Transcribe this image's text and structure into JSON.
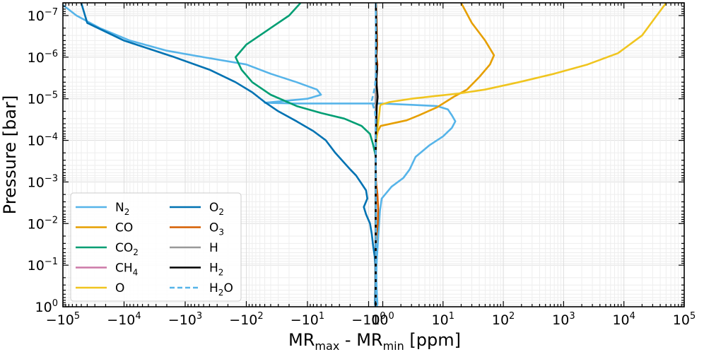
{
  "chart_data": {
    "type": "line",
    "xlabel": {
      "main": "MR",
      "sub1": "max",
      "mid": " - MR",
      "sub2": "min",
      "tail": " [ppm]"
    },
    "ylabel": "Pressure [bar]",
    "x_scale": "symlog",
    "y_scale": "log",
    "y_inverted": true,
    "xlim": [
      -100000,
      100000
    ],
    "ylim": [
      1,
      5e-08
    ],
    "x_ticks": [
      {
        "value": -100000,
        "base": "−10",
        "exp": "5"
      },
      {
        "value": -10000,
        "base": "−10",
        "exp": "4"
      },
      {
        "value": -1000,
        "base": "−10",
        "exp": "3"
      },
      {
        "value": -100,
        "base": "−10",
        "exp": "2"
      },
      {
        "value": -10,
        "base": "−10",
        "exp": "1"
      },
      {
        "value": -1,
        "base": "−10",
        "exp": "0"
      },
      {
        "value": 0,
        "base": "0",
        "exp": ""
      },
      {
        "value": 1,
        "base": "10",
        "exp": "0"
      },
      {
        "value": 10,
        "base": "10",
        "exp": "1"
      },
      {
        "value": 100,
        "base": "10",
        "exp": "2"
      },
      {
        "value": 1000,
        "base": "10",
        "exp": "3"
      },
      {
        "value": 10000,
        "base": "10",
        "exp": "4"
      },
      {
        "value": 100000,
        "base": "10",
        "exp": "5"
      }
    ],
    "y_ticks": [
      {
        "value": 1,
        "base": "10",
        "exp": "0"
      },
      {
        "value": 0.1,
        "base": "10",
        "exp": "−1"
      },
      {
        "value": 0.01,
        "base": "10",
        "exp": "−2"
      },
      {
        "value": 0.001,
        "base": "10",
        "exp": "−3"
      },
      {
        "value": 0.0001,
        "base": "10",
        "exp": "−4"
      },
      {
        "value": 1e-05,
        "base": "10",
        "exp": "−5"
      },
      {
        "value": 1e-06,
        "base": "10",
        "exp": "−6"
      },
      {
        "value": 1e-07,
        "base": "10",
        "exp": "−7"
      }
    ],
    "grid": true,
    "legend_position": "lower-left",
    "series": [
      {
        "name": "N",
        "sub": "2",
        "color": "#56B4E9",
        "dash": false,
        "points": [
          [
            -110000,
            5e-08
          ],
          [
            -60000,
            1e-07
          ],
          [
            -25000,
            2e-07
          ],
          [
            -8000,
            4e-07
          ],
          [
            -2000,
            7e-07
          ],
          [
            -500,
            1e-06
          ],
          [
            -100,
            1.5e-06
          ],
          [
            -40,
            2.5e-06
          ],
          [
            -15,
            4e-06
          ],
          [
            -7,
            6e-06
          ],
          [
            -6,
            8e-06
          ],
          [
            -10,
            1e-05
          ],
          [
            -50,
            1.25e-05
          ],
          [
            -15,
            1.3e-05
          ],
          [
            -3,
            1.3e-05
          ],
          [
            -0.3,
            1.3e-05
          ],
          [
            0.8,
            1.3e-05
          ],
          [
            3,
            1.4e-05
          ],
          [
            8,
            1.5e-05
          ],
          [
            12,
            1.8e-05
          ],
          [
            14,
            2.5e-05
          ],
          [
            16,
            3.5e-05
          ],
          [
            14,
            5e-05
          ],
          [
            10,
            8e-05
          ],
          [
            6,
            0.00013
          ],
          [
            3.5,
            0.00025
          ],
          [
            2.8,
            0.0005
          ],
          [
            2.2,
            0.0008
          ],
          [
            1.4,
            0.0013
          ],
          [
            0.85,
            0.0025
          ],
          [
            0.6,
            0.005
          ],
          [
            0.45,
            0.012
          ],
          [
            0.3,
            0.03
          ],
          [
            0.15,
            0.08
          ],
          [
            0.1,
            0.15
          ],
          [
            0.12,
            0.3
          ],
          [
            0.2,
            0.6
          ],
          [
            0.25,
            0.85
          ],
          [
            0.15,
            1
          ]
        ]
      },
      {
        "name": "CO",
        "sub": "",
        "color": "#E69F00",
        "dash": false,
        "points": [
          [
            20,
            5e-08
          ],
          [
            30,
            1.5e-07
          ],
          [
            50,
            4e-07
          ],
          [
            70,
            9e-07
          ],
          [
            60,
            1.5e-06
          ],
          [
            40,
            3e-06
          ],
          [
            25,
            6e-06
          ],
          [
            15,
            9e-06
          ],
          [
            8,
            1.6e-05
          ],
          [
            4,
            2.5e-05
          ],
          [
            2.5,
            3.3e-05
          ],
          [
            0.7,
            4.5e-05
          ],
          [
            0.3,
            6e-05
          ],
          [
            0.15,
            8e-05
          ],
          [
            0.07,
            0.00012
          ],
          [
            0.02,
            0.0002
          ],
          [
            0,
            0.0003
          ],
          [
            0,
            1
          ]
        ]
      },
      {
        "name": "CO",
        "sub": "2",
        "color": "#009E73",
        "dash": false,
        "points": [
          [
            -13,
            5e-08
          ],
          [
            -20,
            1e-07
          ],
          [
            -50,
            2.5e-07
          ],
          [
            -100,
            5e-07
          ],
          [
            -150,
            1e-06
          ],
          [
            -120,
            2e-06
          ],
          [
            -80,
            4e-06
          ],
          [
            -40,
            8e-06
          ],
          [
            -15,
            1.5e-05
          ],
          [
            -6,
            2.2e-05
          ],
          [
            -2.5,
            3e-05
          ],
          [
            -1.3,
            4.5e-05
          ],
          [
            -0.8,
            7e-05
          ],
          [
            -0.4,
            0.00012
          ],
          [
            -0.1,
            0.0002
          ],
          [
            0,
            0.00025
          ],
          [
            0,
            1
          ]
        ]
      },
      {
        "name": "CH",
        "sub": "4",
        "color": "#CC79A7",
        "dash": false,
        "points": [
          [
            0.02,
            5e-08
          ],
          [
            0.04,
            1e-07
          ],
          [
            0.02,
            1e-06
          ],
          [
            0.05,
            5e-06
          ],
          [
            -0.02,
            1e-05
          ],
          [
            0.03,
            3e-05
          ],
          [
            0,
            0.0001
          ],
          [
            0,
            1
          ]
        ]
      },
      {
        "name": "O",
        "sub": "",
        "color": "#F0E442",
        "dash": false,
        "color_override": "#F0C51F",
        "points": [
          [
            50000,
            5e-08
          ],
          [
            35000,
            1e-07
          ],
          [
            20000,
            3e-07
          ],
          [
            8000,
            8e-07
          ],
          [
            2500,
            1.5e-06
          ],
          [
            700,
            2.5e-06
          ],
          [
            180,
            4e-06
          ],
          [
            50,
            6e-06
          ],
          [
            18,
            7.5e-06
          ],
          [
            8,
            8.5e-06
          ],
          [
            3,
            1e-05
          ],
          [
            1.3,
            1.2e-05
          ],
          [
            0.7,
            1.4e-05
          ],
          [
            0.6,
            1.6e-05
          ],
          [
            0.55,
            2e-05
          ],
          [
            0.25,
            5e-05
          ],
          [
            0.1,
            0.0001
          ],
          [
            0,
            0.0002
          ],
          [
            0,
            1
          ]
        ]
      },
      {
        "name": "O",
        "sub": "2",
        "color": "#0072B2",
        "dash": false,
        "points": [
          [
            -50000,
            5e-08
          ],
          [
            -40000,
            1.5e-07
          ],
          [
            -10000,
            4e-07
          ],
          [
            -1500,
            1e-06
          ],
          [
            -400,
            2e-06
          ],
          [
            -150,
            4e-06
          ],
          [
            -80,
            7e-06
          ],
          [
            -50,
            1.2e-05
          ],
          [
            -30,
            2e-05
          ],
          [
            -15,
            3.5e-05
          ],
          [
            -8,
            6e-05
          ],
          [
            -5,
            0.0001
          ],
          [
            -3.5,
            0.0002
          ],
          [
            -2,
            0.0005
          ],
          [
            -1.6,
            0.0007
          ],
          [
            -1.3,
            0.0011
          ],
          [
            -1.1,
            0.0016
          ],
          [
            -1.05,
            0.0025
          ],
          [
            -1.2,
            0.004
          ],
          [
            -1.1,
            0.006
          ],
          [
            -0.8,
            0.01
          ],
          [
            -0.55,
            0.018
          ],
          [
            -0.35,
            0.035
          ],
          [
            -0.15,
            0.06
          ],
          [
            -0.05,
            0.1
          ],
          [
            -0.04,
            0.3
          ],
          [
            -0.1,
            0.8
          ],
          [
            -0.05,
            1
          ]
        ]
      },
      {
        "name": "O",
        "sub": "3",
        "color": "#D55E00",
        "dash": false,
        "points": [
          [
            0.05,
            5e-08
          ],
          [
            0.1,
            1e-07
          ],
          [
            0.2,
            5e-07
          ],
          [
            0.1,
            1e-06
          ],
          [
            0.25,
            1.5e-06
          ],
          [
            0.1,
            2.5e-06
          ],
          [
            0.15,
            4e-06
          ],
          [
            0.05,
            6e-06
          ],
          [
            0.05,
            1e-05
          ],
          [
            0.04,
            3e-05
          ],
          [
            0.01,
            0.0001
          ],
          [
            0,
            0.0003
          ],
          [
            0.05,
            0.001
          ],
          [
            0.25,
            0.002
          ],
          [
            0.35,
            0.0045
          ],
          [
            0.3,
            0.01
          ],
          [
            0.12,
            0.018
          ],
          [
            0.03,
            0.03
          ],
          [
            0,
            0.05
          ],
          [
            0,
            1
          ]
        ]
      },
      {
        "name": "H",
        "sub": "",
        "color": "#999999",
        "dash": false,
        "points": [
          [
            0.01,
            5e-08
          ],
          [
            0.03,
            1e-07
          ],
          [
            0.02,
            2e-06
          ],
          [
            0.01,
            1e-05
          ],
          [
            0.01,
            0.0001
          ],
          [
            0,
            0.001
          ],
          [
            0,
            1
          ]
        ]
      },
      {
        "name": "H",
        "sub": "2",
        "color": "#000000",
        "dash": false,
        "points": [
          [
            0.03,
            5e-08
          ],
          [
            0.08,
            2e-07
          ],
          [
            0.1,
            6e-07
          ],
          [
            0.05,
            1e-06
          ],
          [
            0.2,
            2e-06
          ],
          [
            0.1,
            3.5e-06
          ],
          [
            0.15,
            5e-06
          ],
          [
            0.28,
            9e-06
          ],
          [
            0.15,
            1.5e-05
          ],
          [
            0.1,
            3e-05
          ],
          [
            0.04,
            6e-05
          ],
          [
            0.01,
            0.0001
          ],
          [
            0,
            0.001
          ],
          [
            0,
            1
          ]
        ]
      },
      {
        "name": "H",
        "sub": "2",
        "prefix_sub_after": "O",
        "color": "#56B4E9",
        "dash": true,
        "points": [
          [
            0.02,
            5e-08
          ],
          [
            0.02,
            1e-06
          ],
          [
            0.01,
            3e-06
          ],
          [
            -0.1,
            5e-06
          ],
          [
            -0.35,
            8e-06
          ],
          [
            -0.55,
            1.1e-05
          ],
          [
            -0.35,
            1.5e-05
          ],
          [
            -0.1,
            2e-05
          ],
          [
            -0.02,
            3e-05
          ],
          [
            0,
            0.0001
          ],
          [
            0.01,
            0.001
          ],
          [
            0.02,
            0.01
          ],
          [
            0.02,
            0.1
          ],
          [
            0.02,
            1
          ]
        ]
      }
    ]
  }
}
